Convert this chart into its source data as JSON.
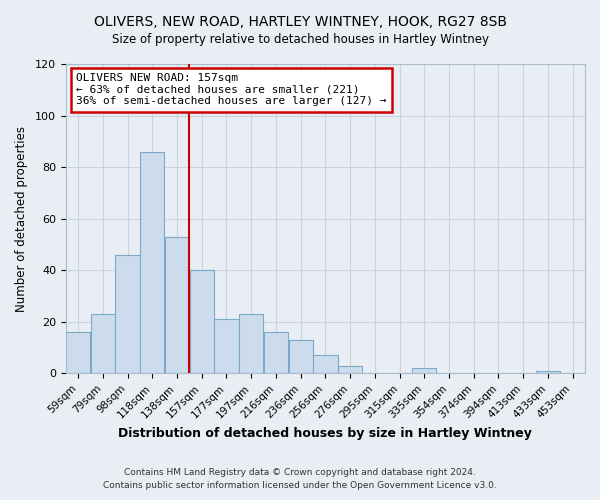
{
  "title": "OLIVERS, NEW ROAD, HARTLEY WINTNEY, HOOK, RG27 8SB",
  "subtitle": "Size of property relative to detached houses in Hartley Wintney",
  "xlabel": "Distribution of detached houses by size in Hartley Wintney",
  "ylabel": "Number of detached properties",
  "bin_labels": [
    "59sqm",
    "79sqm",
    "98sqm",
    "118sqm",
    "138sqm",
    "157sqm",
    "177sqm",
    "197sqm",
    "216sqm",
    "236sqm",
    "256sqm",
    "276sqm",
    "295sqm",
    "315sqm",
    "335sqm",
    "354sqm",
    "374sqm",
    "394sqm",
    "413sqm",
    "433sqm",
    "453sqm"
  ],
  "bar_heights": [
    16,
    23,
    46,
    86,
    53,
    40,
    21,
    23,
    16,
    13,
    7,
    3,
    0,
    0,
    2,
    0,
    0,
    0,
    0,
    1,
    0
  ],
  "bar_color": "#ccdcec",
  "bar_edge_color": "#7aaac8",
  "vline_color": "#cc0000",
  "annotation_text": "OLIVERS NEW ROAD: 157sqm\n← 63% of detached houses are smaller (221)\n36% of semi-detached houses are larger (127) →",
  "annotation_box_color": "#ffffff",
  "annotation_box_edge": "#cc0000",
  "ylim": [
    0,
    120
  ],
  "yticks": [
    0,
    20,
    40,
    60,
    80,
    100,
    120
  ],
  "footer1": "Contains HM Land Registry data © Crown copyright and database right 2024.",
  "footer2": "Contains public sector information licensed under the Open Government Licence v3.0.",
  "bg_color": "#e8eef4",
  "plot_bg_color": "#e8eef4",
  "grid_color": "#c8d4e0"
}
